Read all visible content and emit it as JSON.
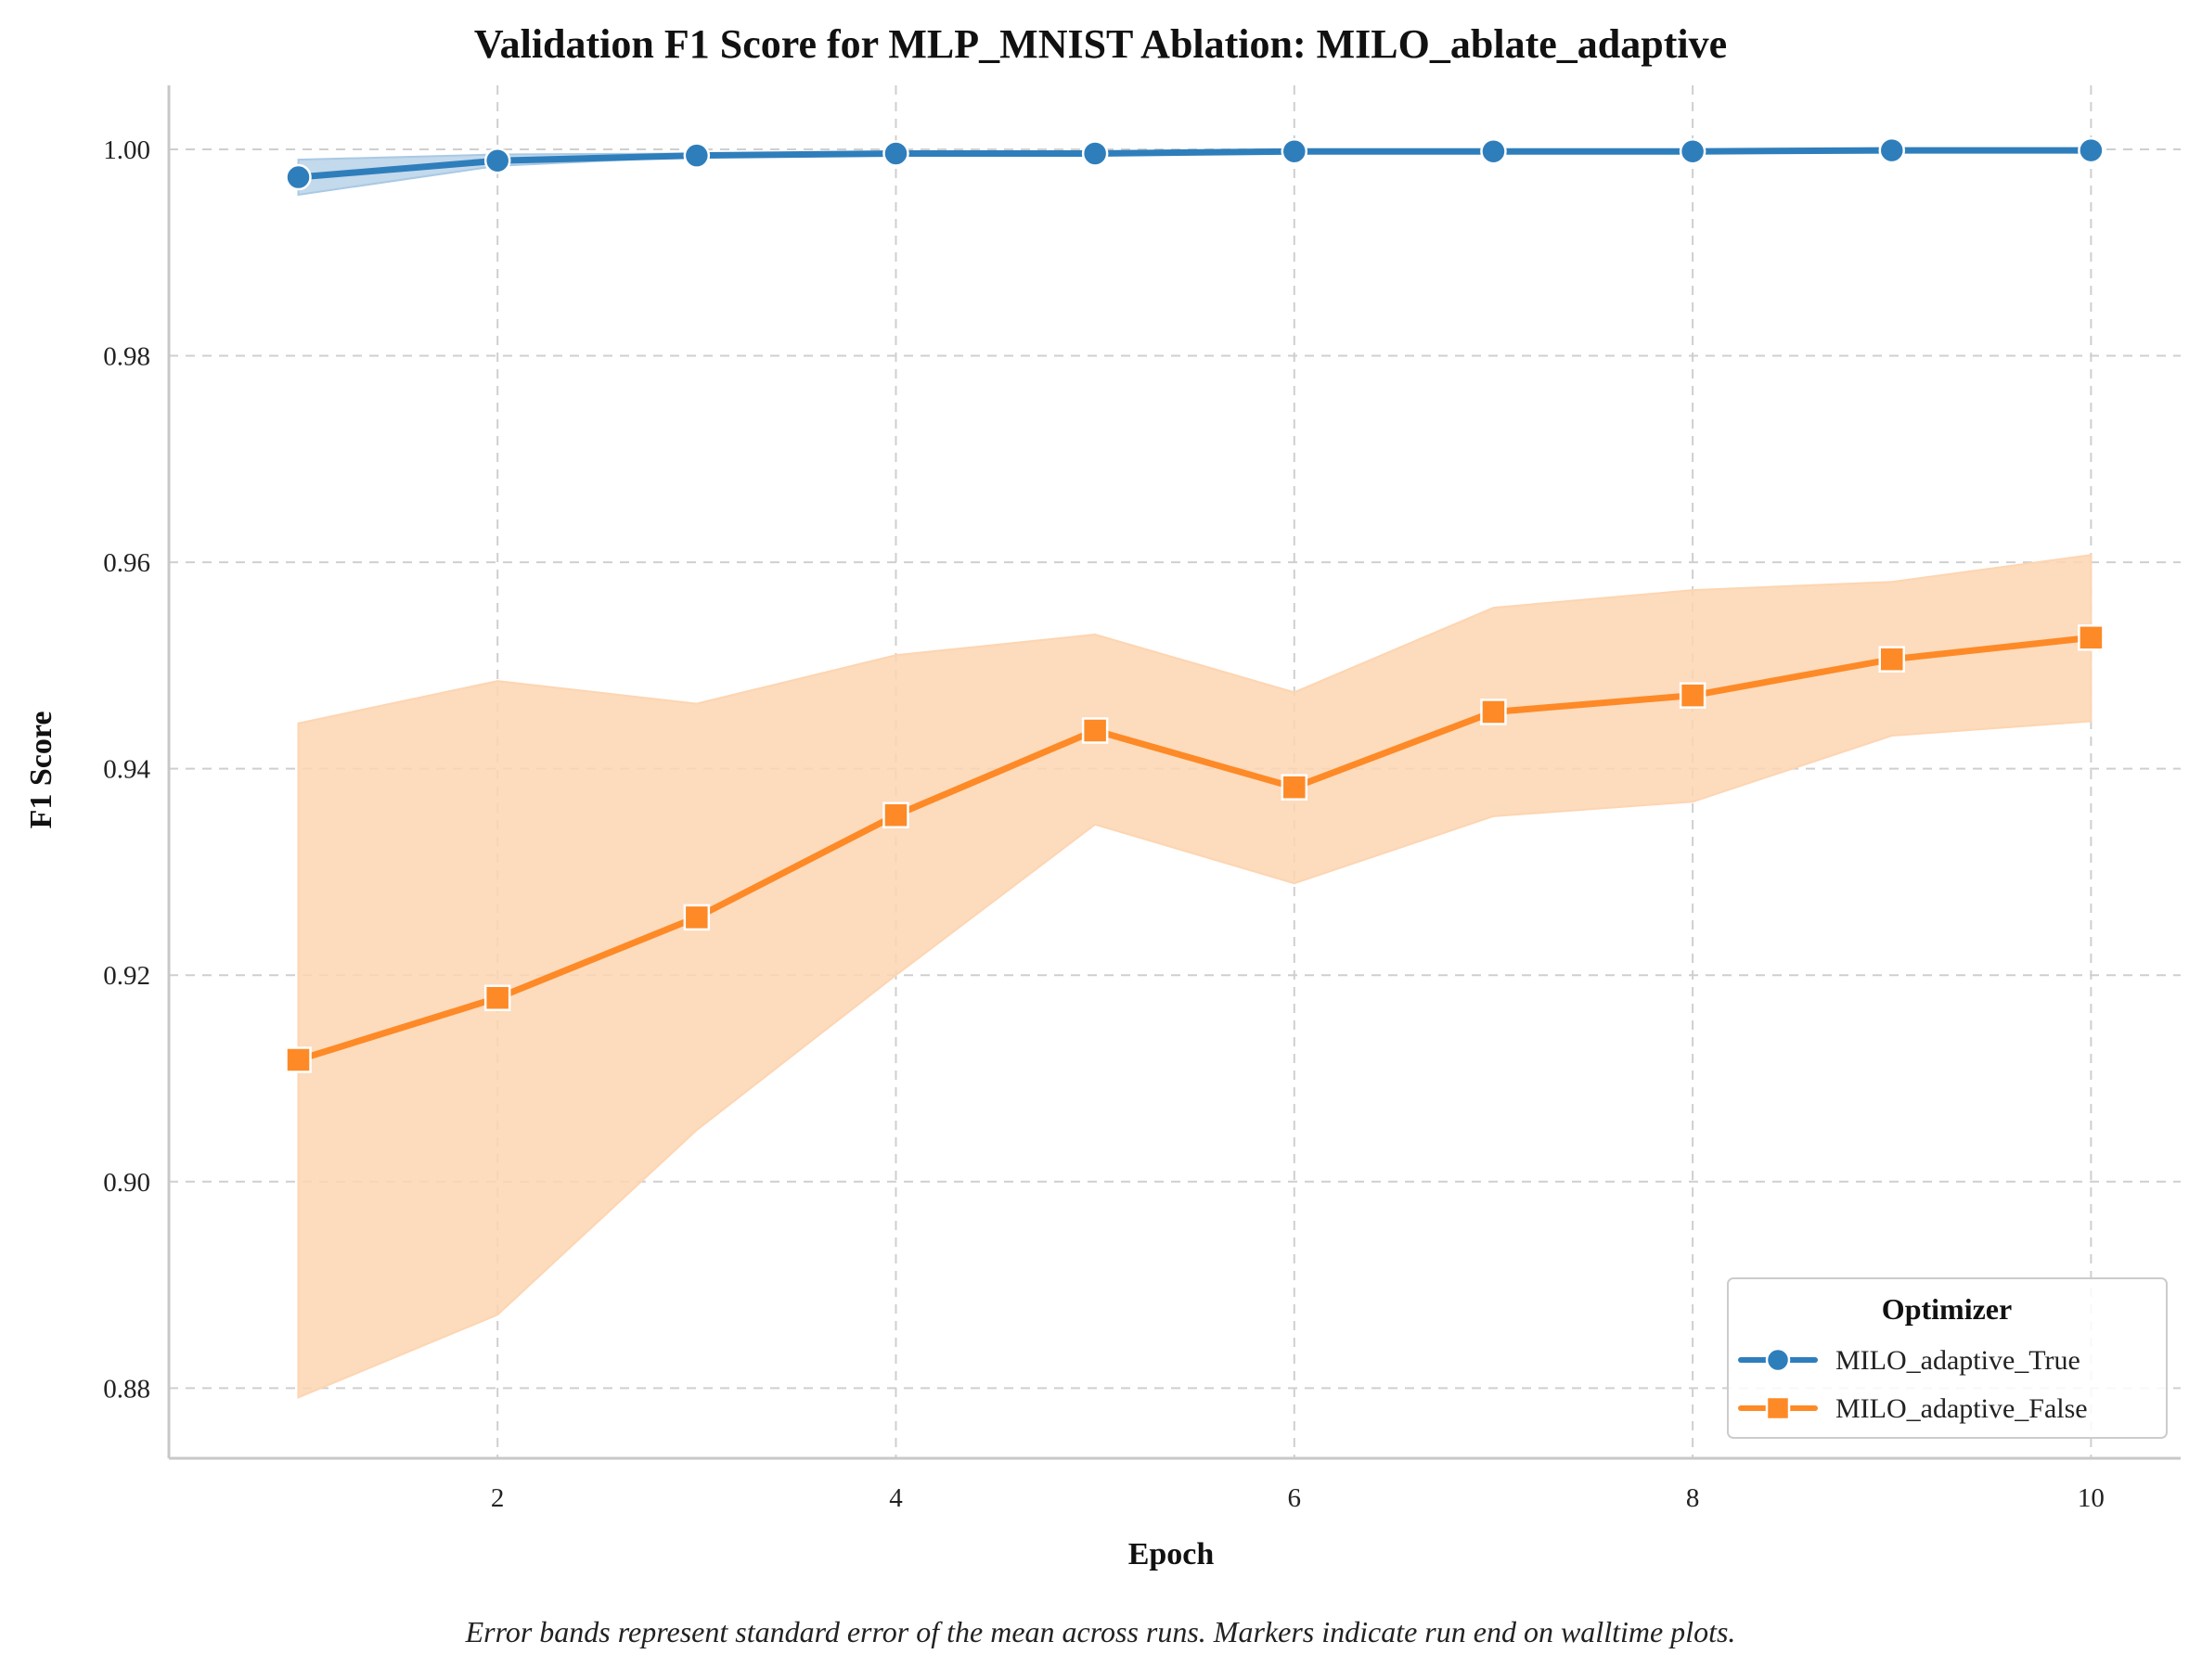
{
  "chart_data": {
    "type": "line",
    "title": "Validation F1 Score for MLP_MNIST Ablation: MILO_ablate_adaptive",
    "xlabel": "Epoch",
    "ylabel": "F1 Score",
    "caption": "Error bands represent standard error of the mean across runs. Markers indicate run end on walltime plots.",
    "x": [
      1,
      2,
      3,
      4,
      5,
      6,
      7,
      8,
      9,
      10
    ],
    "xlim": [
      0.35,
      10.45
    ],
    "ylim": [
      0.8732,
      1.0062
    ],
    "xticks": [
      2,
      4,
      6,
      8,
      10
    ],
    "yticks": [
      0.88,
      0.9,
      0.92,
      0.94,
      0.96,
      0.98,
      1.0
    ],
    "ytick_labels": [
      "0.88",
      "0.90",
      "0.92",
      "0.94",
      "0.96",
      "0.98",
      "1.00"
    ],
    "xtick_labels": [
      "2",
      "4",
      "6",
      "8",
      "10"
    ],
    "grid": true,
    "legend": {
      "title": "Optimizer",
      "placement": "lower-right"
    },
    "series": [
      {
        "name": "MILO_adaptive_True",
        "color": "#2f7ebc",
        "band_color": "#a9c9e4",
        "marker": "circle",
        "values": [
          0.9973,
          0.9989,
          0.9994,
          0.9996,
          0.9996,
          0.9998,
          0.9998,
          0.9998,
          0.9999,
          0.9999
        ],
        "lower": [
          0.9956,
          0.9984,
          0.9993,
          0.9995,
          0.9995,
          0.9997,
          0.9997,
          0.9997,
          0.9998,
          0.9998
        ],
        "upper": [
          0.999,
          0.9995,
          0.9996,
          0.9997,
          0.9997,
          0.9999,
          0.9999,
          0.9999,
          1.0,
          1.0
        ]
      },
      {
        "name": "MILO_adaptive_False",
        "color": "#fd8a27",
        "band_color": "#fdd5b1",
        "marker": "square",
        "values": [
          0.9118,
          0.9178,
          0.9256,
          0.9355,
          0.9437,
          0.9382,
          0.9455,
          0.9471,
          0.9506,
          0.9527
        ],
        "lower": [
          0.8791,
          0.8871,
          0.905,
          0.92,
          0.9346,
          0.9289,
          0.9354,
          0.9368,
          0.9432,
          0.9446
        ],
        "upper": [
          0.9444,
          0.9485,
          0.9463,
          0.951,
          0.953,
          0.9474,
          0.9556,
          0.9573,
          0.9581,
          0.9607
        ]
      }
    ]
  }
}
